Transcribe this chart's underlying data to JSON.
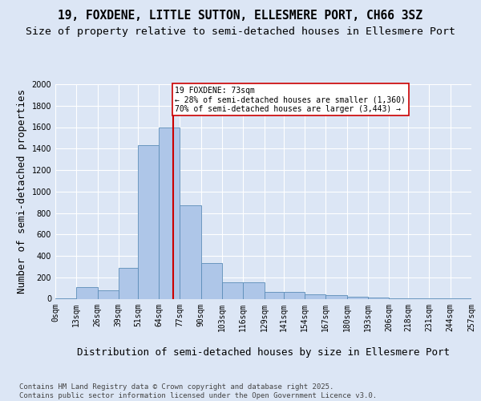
{
  "title_line1": "19, FOXDENE, LITTLE SUTTON, ELLESMERE PORT, CH66 3SZ",
  "title_line2": "Size of property relative to semi-detached houses in Ellesmere Port",
  "xlabel": "Distribution of semi-detached houses by size in Ellesmere Port",
  "ylabel": "Number of semi-detached properties",
  "footer": "Contains HM Land Registry data © Crown copyright and database right 2025.\nContains public sector information licensed under the Open Government Licence v3.0.",
  "bins": [
    0,
    13,
    26,
    39,
    51,
    64,
    77,
    90,
    103,
    116,
    129,
    141,
    154,
    167,
    180,
    193,
    206,
    218,
    231,
    244,
    257
  ],
  "bin_labels": [
    "0sqm",
    "13sqm",
    "26sqm",
    "39sqm",
    "51sqm",
    "64sqm",
    "77sqm",
    "90sqm",
    "103sqm",
    "116sqm",
    "129sqm",
    "141sqm",
    "154sqm",
    "167sqm",
    "180sqm",
    "193sqm",
    "206sqm",
    "218sqm",
    "231sqm",
    "244sqm",
    "257sqm"
  ],
  "bar_heights": [
    5,
    110,
    80,
    290,
    1430,
    1600,
    870,
    330,
    150,
    150,
    65,
    65,
    40,
    30,
    20,
    10,
    5,
    5,
    2,
    2
  ],
  "bar_color": "#aec6e8",
  "bar_edge_color": "#5b8db8",
  "property_value": 73,
  "vline_color": "#cc0000",
  "annotation_text": "19 FOXDENE: 73sqm\n← 28% of semi-detached houses are smaller (1,360)\n70% of semi-detached houses are larger (3,443) →",
  "annotation_box_color": "#ffffff",
  "annotation_box_edge": "#cc0000",
  "ylim": [
    0,
    2000
  ],
  "yticks": [
    0,
    200,
    400,
    600,
    800,
    1000,
    1200,
    1400,
    1600,
    1800,
    2000
  ],
  "background_color": "#dce6f5",
  "plot_bg_color": "#dce6f5",
  "grid_color": "#ffffff",
  "title_fontsize": 10.5,
  "subtitle_fontsize": 9.5,
  "label_fontsize": 9,
  "tick_fontsize": 7,
  "footer_fontsize": 6.5
}
